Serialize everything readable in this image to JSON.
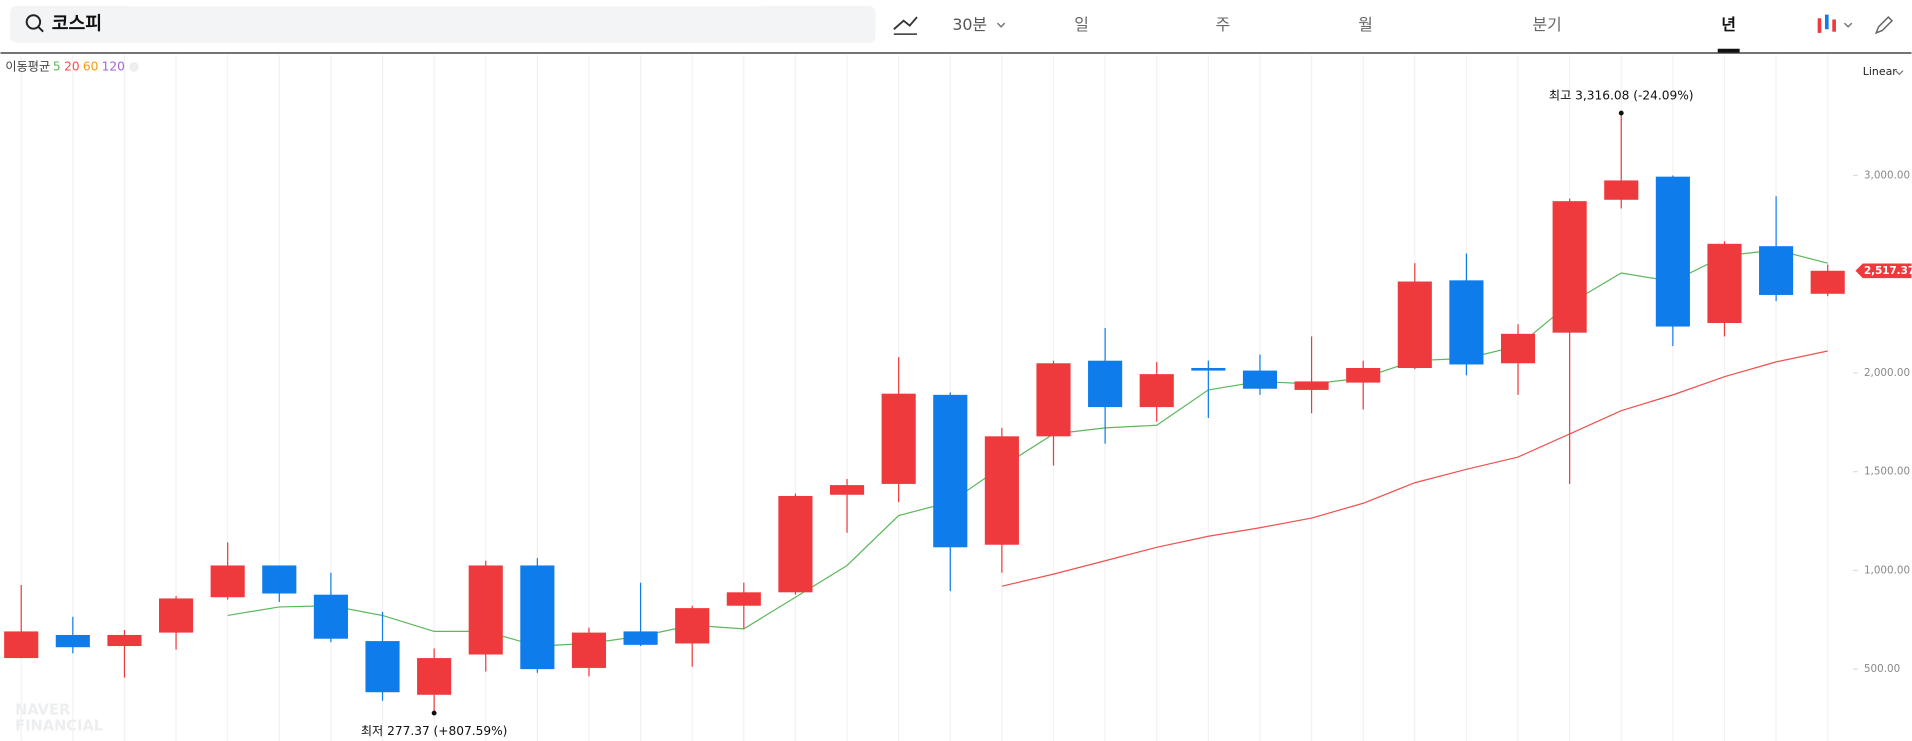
{
  "toolbar": {
    "search": "코스피",
    "interval": "30분",
    "periods": [
      "일",
      "주",
      "월",
      "분기",
      "년"
    ],
    "active_period": "년"
  },
  "chart_data": {
    "type": "candlestick",
    "scale_label": "Linear",
    "watermark": [
      "NAVER",
      "FINANCIAL"
    ],
    "legend_title": "이동평균",
    "up_color": "#ef3a3d",
    "down_color": "#0f7cec",
    "open": [
      556,
      673,
      617,
      685,
      864,
      1025,
      877,
      642,
      370,
      574,
      1025,
      506,
      691,
      630,
      821,
      889,
      1383,
      1438,
      1889,
      1130,
      1679,
      2062,
      1827,
      2025,
      2012,
      1914,
      1951,
      2025,
      2469,
      2049,
      2204,
      2877,
      2994,
      2253,
      2642,
      2401
    ],
    "high": [
      926,
      765,
      698,
      870,
      1142,
      1025,
      988,
      790,
      605,
      1049,
      1062,
      710,
      938,
      821,
      938,
      1389,
      1463,
      2080,
      1901,
      1722,
      2062,
      2228,
      2056,
      2062,
      2093,
      2185,
      2062,
      2556,
      2605,
      2247,
      2883,
      3316.08,
      3000,
      2667,
      2895,
      2549
    ],
    "low": [
      556,
      580,
      457,
      599,
      852,
      840,
      636,
      340,
      277.37,
      488,
      481,
      463,
      617,
      512,
      704,
      877,
      1191,
      1346,
      895,
      988,
      1531,
      1642,
      1753,
      1772,
      1889,
      1796,
      1815,
      2019,
      1988,
      1889,
      1438,
      2833,
      2136,
      2185,
      2364,
      2389
    ],
    "close": [
      691,
      611,
      673,
      858,
      1025,
      883,
      654,
      383,
      556,
      1025,
      500,
      685,
      623,
      809,
      889,
      1377,
      1432,
      1895,
      1117,
      1679,
      2049,
      1827,
      1994,
      2012,
      1920,
      1957,
      2025,
      2463,
      2043,
      2198,
      2870,
      2975,
      2235,
      2654,
      2395,
      2517.37
    ],
    "moving_averages": [
      {
        "name": "5",
        "color": "#5cb85c",
        "values": [
          null,
          null,
          null,
          null,
          772,
          815,
          821,
          772,
          691,
          691,
          617,
          630,
          667,
          722,
          704,
          864,
          1025,
          1278,
          1346,
          1525,
          1691,
          1722,
          1735,
          1914,
          1957,
          1944,
          1975,
          2062,
          2074,
          2136,
          2352,
          2506,
          2463,
          2593,
          2623,
          2556
        ]
      },
      {
        "name": "20",
        "color": "#f0514f",
        "values": [
          null,
          null,
          null,
          null,
          null,
          null,
          null,
          null,
          null,
          null,
          null,
          null,
          null,
          null,
          null,
          null,
          null,
          null,
          null,
          920,
          981,
          1049,
          1117,
          1173,
          1216,
          1265,
          1340,
          1444,
          1512,
          1574,
          1691,
          1809,
          1889,
          1981,
          2056,
          2111
        ]
      },
      {
        "name": "60",
        "color": "#f39c12"
      },
      {
        "name": "120",
        "color": "#a366d9"
      }
    ],
    "ylim": [
      136,
      3611
    ],
    "yticks": [
      {
        "value": 500,
        "label": "500.00"
      },
      {
        "value": 1000,
        "label": "1,000.00"
      },
      {
        "value": 1500,
        "label": "1,500.00"
      },
      {
        "value": 2000,
        "label": "2,000.00"
      },
      {
        "value": 3000,
        "label": "3,000.00"
      }
    ],
    "last_price_label": "2,517.37",
    "annotations": {
      "high": "최고 3,316.08 (-24.09%)",
      "low": "최저 277.37 (+807.59%)"
    }
  }
}
